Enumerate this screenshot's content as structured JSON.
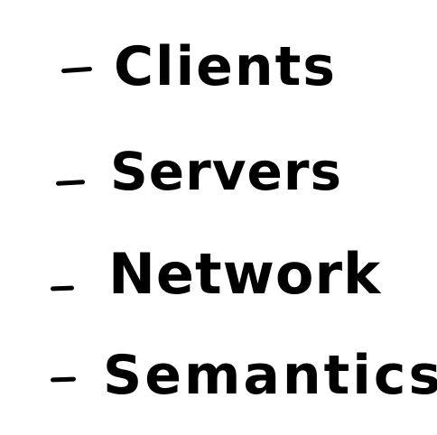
{
  "bullets": [
    {
      "marker": "-",
      "text": "Clients"
    },
    {
      "marker": "-",
      "text": "Servers"
    },
    {
      "marker": "-",
      "text": "Network"
    },
    {
      "marker": "-",
      "text": "Semantics"
    }
  ],
  "colors": {
    "ink": "#000000",
    "background": "#ffffff"
  }
}
